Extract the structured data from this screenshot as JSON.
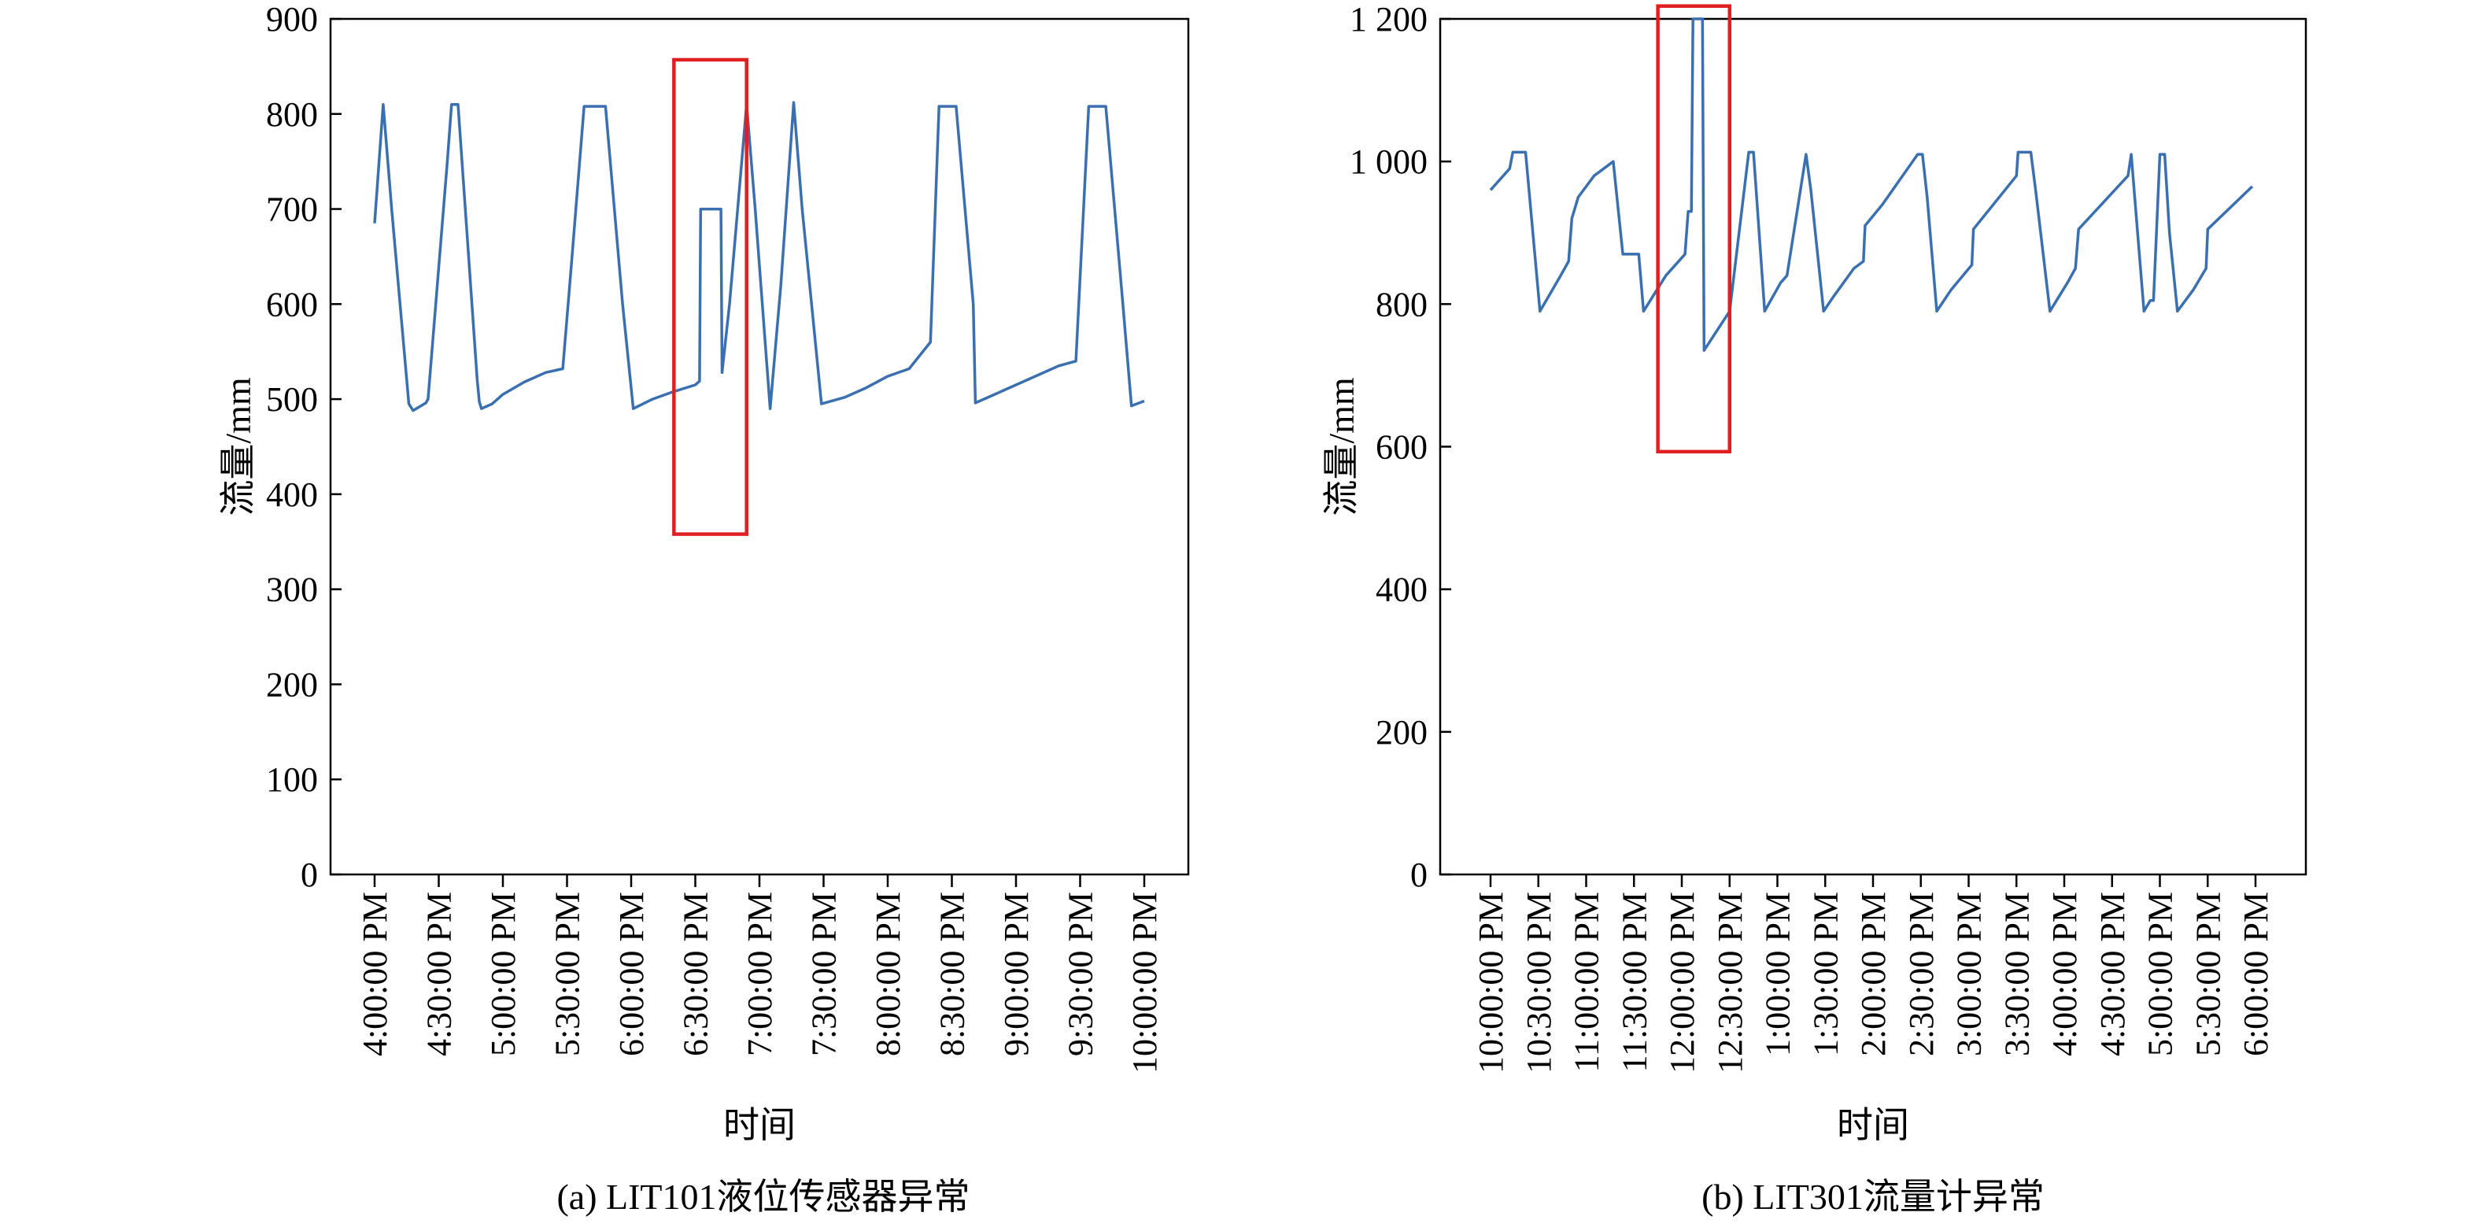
{
  "chart_data": [
    {
      "type": "line",
      "caption": "(a)  LIT101液位传感器异常",
      "xlabel": "时间",
      "ylabel": "流量/mm",
      "ylim": [
        0,
        900
      ],
      "yticks": [
        0,
        100,
        200,
        300,
        400,
        500,
        600,
        700,
        800,
        900
      ],
      "ytick_labels": [
        "0",
        "100",
        "200",
        "300",
        "400",
        "500",
        "600",
        "700",
        "800",
        "900"
      ],
      "xlim": [
        0,
        360
      ],
      "x_unit": "minutes after 4:00:00 PM",
      "xticks": [
        0,
        30,
        60,
        90,
        120,
        150,
        180,
        210,
        240,
        270,
        300,
        330,
        360
      ],
      "xtick_labels": [
        "4:00:00 PM",
        "4:30:00 PM",
        "5:00:00 PM",
        "5:30:00 PM",
        "6:00:00 PM",
        "6:30:00 PM",
        "7:00:00 PM",
        "7:30:00 PM",
        "8:00:00 PM",
        "8:30:00 PM",
        "9:00:00 PM",
        "9:30:00 PM",
        "10:00:00 PM"
      ],
      "series_color": "#3a6fb0",
      "points": [
        [
          0,
          685
        ],
        [
          4,
          810
        ],
        [
          8,
          700
        ],
        [
          16,
          495
        ],
        [
          18,
          488
        ],
        [
          24,
          496
        ],
        [
          25,
          500
        ],
        [
          34,
          750
        ],
        [
          36,
          810
        ],
        [
          39,
          810
        ],
        [
          48,
          520
        ],
        [
          49,
          497
        ],
        [
          50,
          490
        ],
        [
          55,
          495
        ],
        [
          60,
          505
        ],
        [
          70,
          518
        ],
        [
          80,
          528
        ],
        [
          88,
          532
        ],
        [
          92,
          640
        ],
        [
          98,
          808
        ],
        [
          108,
          808
        ],
        [
          116,
          600
        ],
        [
          121,
          490
        ],
        [
          130,
          500
        ],
        [
          140,
          508
        ],
        [
          150,
          515
        ],
        [
          152,
          519
        ],
        [
          152.5,
          700
        ],
        [
          162,
          700
        ],
        [
          162.5,
          528
        ],
        [
          166,
          600
        ],
        [
          174,
          810
        ],
        [
          178,
          700
        ],
        [
          185,
          490
        ],
        [
          190,
          620
        ],
        [
          196,
          812
        ],
        [
          200,
          700
        ],
        [
          209,
          495
        ],
        [
          220,
          502
        ],
        [
          230,
          512
        ],
        [
          240,
          524
        ],
        [
          250,
          532
        ],
        [
          260,
          560
        ],
        [
          264,
          808
        ],
        [
          272,
          808
        ],
        [
          280,
          600
        ],
        [
          281,
          496
        ],
        [
          290,
          505
        ],
        [
          300,
          515
        ],
        [
          310,
          525
        ],
        [
          320,
          535
        ],
        [
          328,
          540
        ],
        [
          334,
          808
        ],
        [
          342,
          808
        ],
        [
          350,
          600
        ],
        [
          354,
          493
        ],
        [
          360,
          498
        ]
      ],
      "highlight": {
        "x": [
          140,
          174
        ],
        "y": [
          358,
          857
        ]
      }
    },
    {
      "type": "line",
      "caption": "(b)  LIT301流量计异常",
      "xlabel": "时间",
      "ylabel": "流量/mm",
      "ylim": [
        0,
        1200
      ],
      "yticks": [
        0,
        200,
        400,
        600,
        800,
        1000,
        1200
      ],
      "ytick_labels": [
        "0",
        "200",
        "400",
        "600",
        "800",
        "1 000",
        "1 200"
      ],
      "xlim": [
        0,
        480
      ],
      "x_unit": "minutes after 10:00:00 PM",
      "xticks": [
        0,
        30,
        60,
        90,
        120,
        150,
        180,
        210,
        240,
        270,
        300,
        330,
        360,
        390,
        420,
        450,
        480
      ],
      "xtick_labels": [
        "10:00:00 PM",
        "10:30:00 PM",
        "11:00:00 PM",
        "11:30:00 PM",
        "12:00:00 PM",
        "12:30:00 PM",
        "1:00:00 PM",
        "1:30:00 PM",
        "2:00:00 PM",
        "2:30:00 PM",
        "3:00:00 PM",
        "3:30:00 PM",
        "4:00:00 PM",
        "4:30:00 PM",
        "5:00:00 PM",
        "5:30:00 PM",
        "6:00:00 PM"
      ],
      "series_color": "#3a6fb0",
      "points": [
        [
          0,
          960
        ],
        [
          12,
          990
        ],
        [
          14,
          1013
        ],
        [
          22,
          1013
        ],
        [
          31,
          790
        ],
        [
          44,
          840
        ],
        [
          49,
          860
        ],
        [
          51,
          920
        ],
        [
          55,
          950
        ],
        [
          65,
          980
        ],
        [
          77,
          1000
        ],
        [
          83,
          870
        ],
        [
          93,
          870
        ],
        [
          96,
          790
        ],
        [
          110,
          840
        ],
        [
          122,
          870
        ],
        [
          124,
          930
        ],
        [
          126,
          930
        ],
        [
          127,
          1200
        ],
        [
          133,
          1200
        ],
        [
          134,
          735
        ],
        [
          150,
          790
        ],
        [
          162,
          1013
        ],
        [
          165,
          1013
        ],
        [
          172,
          790
        ],
        [
          182,
          830
        ],
        [
          186,
          840
        ],
        [
          198,
          1010
        ],
        [
          201,
          960
        ],
        [
          209,
          790
        ],
        [
          215,
          810
        ],
        [
          228,
          850
        ],
        [
          234,
          860
        ],
        [
          235,
          910
        ],
        [
          246,
          940
        ],
        [
          268,
          1010
        ],
        [
          271,
          1010
        ],
        [
          274,
          950
        ],
        [
          280,
          790
        ],
        [
          289,
          820
        ],
        [
          302,
          855
        ],
        [
          303,
          905
        ],
        [
          330,
          980
        ],
        [
          331,
          1013
        ],
        [
          339,
          1013
        ],
        [
          342,
          960
        ],
        [
          351,
          790
        ],
        [
          362,
          830
        ],
        [
          367,
          850
        ],
        [
          369,
          905
        ],
        [
          400,
          980
        ],
        [
          402,
          1010
        ],
        [
          406,
          900
        ],
        [
          410,
          790
        ],
        [
          414,
          805
        ],
        [
          416,
          805
        ],
        [
          420,
          1010
        ],
        [
          423,
          1010
        ],
        [
          426,
          900
        ],
        [
          431,
          790
        ],
        [
          441,
          820
        ],
        [
          449,
          850
        ],
        [
          450,
          905
        ],
        [
          478,
          965
        ]
      ],
      "highlight": {
        "x": [
          105,
          150
        ],
        "y": [
          593,
          1218
        ]
      }
    }
  ]
}
